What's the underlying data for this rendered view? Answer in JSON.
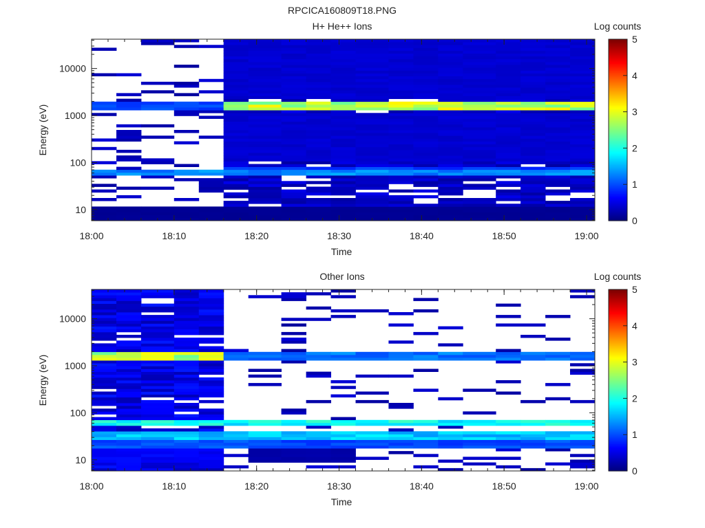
{
  "figure": {
    "title": "RPCICA160809T18.PNG"
  },
  "panels": [
    {
      "title": "H+ He++ Ions",
      "colorbar_label": "Log counts"
    },
    {
      "title": "Other Ions",
      "colorbar_label": "Log counts"
    }
  ],
  "colorbar": {
    "ticks": [
      "0",
      "1",
      "2",
      "3",
      "4",
      "5"
    ],
    "colormap": "jet",
    "range": [
      0,
      5
    ]
  },
  "axes": {
    "xlabel": "Time",
    "ylabel": "Energy (eV)",
    "x_ticks": [
      "18:00",
      "18:10",
      "18:20",
      "18:30",
      "18:40",
      "18:50",
      "19:00"
    ],
    "y_ticks": [
      "10",
      "100",
      "1000",
      "10000"
    ]
  },
  "chart_data": [
    {
      "type": "heatmap",
      "title": "H+ He++ Ions",
      "xlabel": "Time",
      "ylabel": "Energy (eV)",
      "xlim": [
        "18:00",
        "19:01"
      ],
      "ylim": [
        5.8,
        42000
      ],
      "yscale": "log",
      "zlabel": "Log counts",
      "zlim": [
        0,
        5
      ],
      "time_bins": [
        "18:00",
        "18:03",
        "18:06",
        "18:10",
        "18:13",
        "18:16",
        "18:19",
        "18:23",
        "18:26",
        "18:29",
        "18:32",
        "18:36",
        "18:39",
        "18:42",
        "18:45",
        "18:49",
        "18:52",
        "18:55",
        "18:58"
      ],
      "bands": [
        {
          "energy_range": [
            1300,
            1900
          ],
          "time_range": [
            "18:00",
            "18:16"
          ],
          "level": 1.0
        },
        {
          "energy_range": [
            1300,
            1900
          ],
          "time_range": [
            "18:16",
            "19:01"
          ],
          "level": 2.8
        },
        {
          "energy_range": [
            55,
            70
          ],
          "time_range": [
            "18:00",
            "19:01"
          ],
          "level": 1.3
        },
        {
          "energy_range": [
            70,
            85
          ],
          "time_range": [
            "18:16",
            "19:01"
          ],
          "level": 0.9
        },
        {
          "energy_range": [
            2200,
            42000
          ],
          "time_range": [
            "18:16",
            "19:01"
          ],
          "level": 0.4
        },
        {
          "energy_range": [
            110,
            1200
          ],
          "time_range": [
            "18:16",
            "19:01"
          ],
          "level": 0.4
        },
        {
          "energy_range": [
            5.8,
            12
          ],
          "time_range": [
            "18:00",
            "19:01"
          ],
          "level": 0.1
        }
      ],
      "background_fill": {
        "time_range": [
          "18:16",
          "19:01"
        ],
        "level": 0.35,
        "coverage": 0.8
      },
      "background_fill_early": {
        "time_range": [
          "18:00",
          "18:16"
        ],
        "level": 0.3,
        "coverage": 0.2
      }
    },
    {
      "type": "heatmap",
      "title": "Other Ions",
      "xlabel": "Time",
      "ylabel": "Energy (eV)",
      "xlim": [
        "18:00",
        "19:01"
      ],
      "ylim": [
        5.8,
        42000
      ],
      "yscale": "log",
      "zlabel": "Log counts",
      "zlim": [
        0,
        5
      ],
      "time_bins": [
        "18:00",
        "18:03",
        "18:06",
        "18:10",
        "18:13",
        "18:16",
        "18:19",
        "18:23",
        "18:26",
        "18:29",
        "18:32",
        "18:36",
        "18:39",
        "18:42",
        "18:45",
        "18:49",
        "18:52",
        "18:55",
        "18:58"
      ],
      "bands": [
        {
          "energy_range": [
            1300,
            1900
          ],
          "time_range": [
            "18:00",
            "18:16"
          ],
          "level": 2.8
        },
        {
          "energy_range": [
            1300,
            1900
          ],
          "time_range": [
            "18:16",
            "19:01"
          ],
          "level": 1.2
        },
        {
          "energy_range": [
            55,
            72
          ],
          "time_range": [
            "18:00",
            "19:01"
          ],
          "level": 1.9
        },
        {
          "energy_range": [
            25,
            40
          ],
          "time_range": [
            "18:00",
            "19:01"
          ],
          "level": 1.6
        },
        {
          "energy_range": [
            18,
            25
          ],
          "time_range": [
            "18:00",
            "19:01"
          ],
          "level": 1.0
        },
        {
          "energy_range": [
            9,
            18
          ],
          "time_range": [
            "18:00",
            "18:16"
          ],
          "level": 0.6
        },
        {
          "energy_range": [
            9,
            18
          ],
          "time_range": [
            "18:19",
            "18:30"
          ],
          "level": 0.2
        }
      ],
      "background_fill": {
        "time_range": [
          "18:00",
          "18:16"
        ],
        "level": 0.5,
        "coverage": 0.9
      },
      "background_fill_early": {
        "time_range": [
          "18:16",
          "19:01"
        ],
        "level": 0.3,
        "coverage": 0.15
      }
    }
  ]
}
